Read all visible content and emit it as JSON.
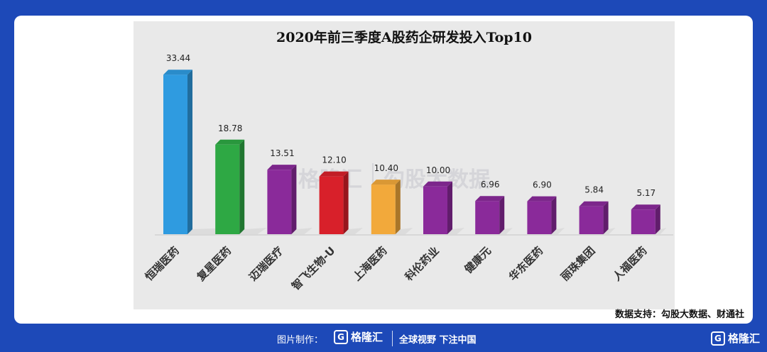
{
  "chart_data": {
    "type": "bar",
    "title": "2020年前三季度A股药企研发投入Top10",
    "categories": [
      "恒瑞医药",
      "复星医药",
      "迈瑞医疗",
      "智飞生物-U",
      "上海医药",
      "科伦药业",
      "健康元",
      "华东医药",
      "丽珠集团",
      "人福医药"
    ],
    "values": [
      33.44,
      18.78,
      13.51,
      12.1,
      10.4,
      10.0,
      6.96,
      6.9,
      5.84,
      5.17
    ],
    "value_labels": [
      "33.44",
      "18.78",
      "13.51",
      "12.10",
      "10.40",
      "10.00",
      "6.96",
      "6.90",
      "5.84",
      "5.17"
    ],
    "colors": [
      "#2f9be0",
      "#2ea844",
      "#8a2a9a",
      "#d8202a",
      "#f2a93b",
      "#8a2a9a",
      "#8a2a9a",
      "#8a2a9a",
      "#8a2a9a",
      "#8a2a9a"
    ],
    "ylim": [
      0,
      36
    ],
    "xlabel": "",
    "ylabel": "",
    "grid": false
  },
  "source_text": "数据支持：勾股大数据、财通社",
  "watermark": {
    "logo_letter": "G",
    "brand": "格隆汇",
    "text": "勾股大数据"
  },
  "footer": {
    "made_by": "图片制作：",
    "logo_letter": "G",
    "brand": "格隆汇",
    "slogan": "全球视野 下注中国",
    "corner_brand": "格隆汇"
  },
  "colors": {
    "background": "#1d49b8",
    "card": "#ffffff",
    "plot": "#e9e9e9"
  }
}
